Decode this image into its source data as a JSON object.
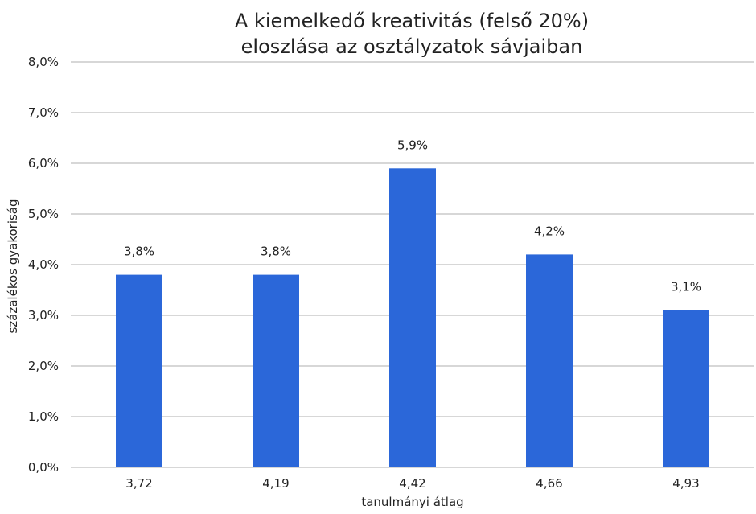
{
  "chart_data": {
    "type": "bar",
    "title_lines": [
      "A kiemelkedő kreativitás (felső 20%)",
      "eloszlása az osztályzatok sávjaiban"
    ],
    "xlabel": "tanulmányi átlag",
    "ylabel": "százalékos gyakoriság",
    "categories": [
      "3,72",
      "4,19",
      "4,42",
      "4,66",
      "4,93"
    ],
    "values": [
      3.8,
      3.8,
      5.9,
      4.2,
      3.1
    ],
    "data_labels": [
      "3,8%",
      "3,8%",
      "5,9%",
      "4,2%",
      "3,1%"
    ],
    "y_ticks": [
      0,
      1,
      2,
      3,
      4,
      5,
      6,
      7,
      8
    ],
    "y_tick_labels": [
      "0,0%",
      "1,0%",
      "2,0%",
      "3,0%",
      "4,0%",
      "5,0%",
      "6,0%",
      "7,0%",
      "8,0%"
    ],
    "ylim": [
      0,
      8
    ],
    "grid": true,
    "legend": "none",
    "bar_color": "#2b67d9"
  }
}
